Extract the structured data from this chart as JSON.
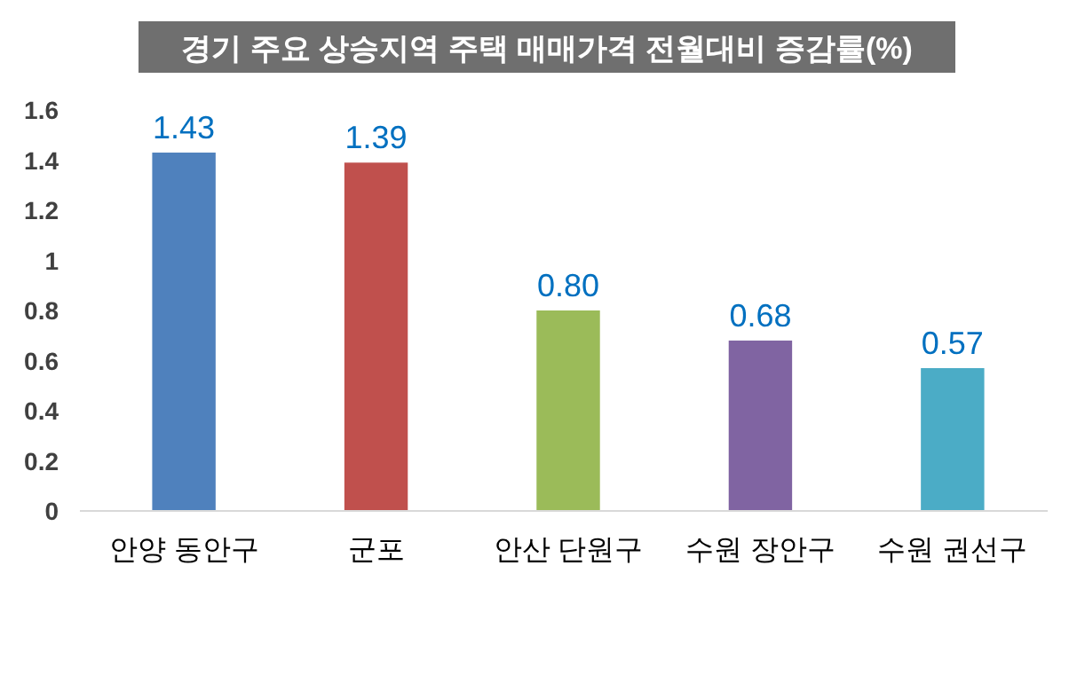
{
  "chart_data": {
    "type": "bar",
    "title": "경기 주요 상승지역 주택 매매가격 전월대비 증감률(%)",
    "categories": [
      "안양 동안구",
      "군포",
      "안산 단원구",
      "수원 장안구",
      "수원 권선구"
    ],
    "values": [
      1.43,
      1.39,
      0.8,
      0.68,
      0.57
    ],
    "value_labels": [
      "1.43",
      "1.39",
      "0.80",
      "0.68",
      "0.57"
    ],
    "colors": [
      "#4f81bd",
      "#c0504d",
      "#9bbb59",
      "#8064a2",
      "#4bacc6"
    ],
    "ylim": [
      0,
      1.6
    ],
    "yticks": [
      0,
      0.2,
      0.4,
      0.6,
      0.8,
      1,
      1.2,
      1.4,
      1.6
    ],
    "grid": false
  }
}
